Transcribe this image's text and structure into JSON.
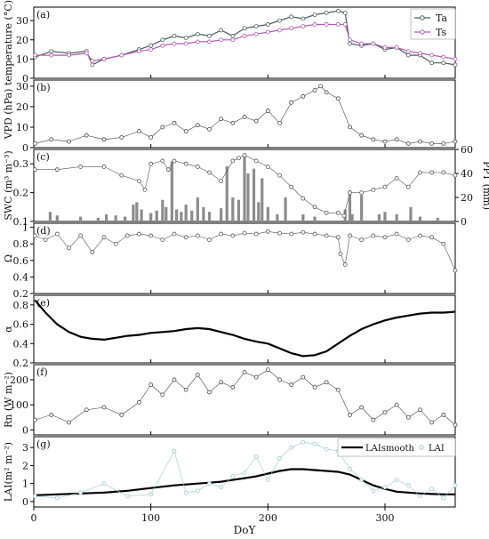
{
  "figure": {
    "xlabel": "DoY",
    "xticks": [
      0,
      100,
      200,
      300
    ],
    "xlim": [
      0,
      360
    ]
  },
  "chart_data": [
    {
      "type": "line",
      "panel_label": "(a)",
      "ylabel": "temperature (°C)",
      "ylim": [
        0,
        37
      ],
      "yticks": [
        0,
        10,
        20,
        30
      ],
      "legend": "top-right",
      "x": [
        1,
        15,
        30,
        45,
        50,
        60,
        75,
        90,
        100,
        110,
        120,
        130,
        140,
        150,
        160,
        170,
        180,
        190,
        200,
        210,
        220,
        230,
        240,
        250,
        260,
        266,
        270,
        280,
        290,
        300,
        310,
        320,
        330,
        340,
        350,
        360
      ],
      "series": [
        {
          "name": "Ta",
          "color": "#4d5c5c",
          "values": [
            11,
            14,
            13,
            14,
            7,
            10,
            12,
            15,
            17,
            20,
            22,
            21,
            23,
            22,
            25,
            22,
            26,
            27,
            28,
            30,
            32,
            31,
            33,
            34,
            35,
            34,
            18,
            17,
            18,
            15,
            16,
            12,
            12,
            8,
            8,
            7
          ]
        },
        {
          "name": "Ts",
          "color": "#b05cb0",
          "values": [
            12,
            12,
            12,
            13,
            9,
            10,
            12,
            14,
            15,
            17,
            18,
            18,
            19,
            19,
            20,
            20,
            22,
            23,
            24,
            25,
            26,
            27,
            28,
            28,
            28,
            28,
            20,
            18,
            18,
            16,
            16,
            14,
            13,
            12,
            11,
            10
          ]
        }
      ]
    },
    {
      "type": "scatter",
      "panel_label": "(b)",
      "ylabel": "VPD (hPa)",
      "ylim": [
        0,
        33
      ],
      "yticks": [
        0,
        10,
        20,
        30
      ],
      "x": [
        1,
        15,
        30,
        45,
        60,
        75,
        90,
        100,
        110,
        120,
        130,
        140,
        150,
        160,
        170,
        180,
        190,
        200,
        210,
        220,
        230,
        240,
        245,
        250,
        260,
        270,
        280,
        290,
        300,
        310,
        320,
        330,
        340,
        350,
        360
      ],
      "series": [
        {
          "name": "VPD",
          "color": "#444444",
          "values": [
            2,
            4,
            3,
            6,
            4,
            5,
            8,
            5,
            10,
            12,
            8,
            11,
            9,
            14,
            12,
            15,
            13,
            18,
            12,
            22,
            25,
            28,
            30,
            27,
            24,
            10,
            6,
            4,
            3,
            4,
            2,
            3,
            2,
            2,
            3
          ]
        }
      ]
    },
    {
      "type": "scatter",
      "panel_label": "(c)",
      "ylabel": "SWC (m³ m⁻³)",
      "y2label": "PPT (mm)",
      "ylim": [
        0.1,
        0.35
      ],
      "yticks": [
        0.1,
        0.2,
        0.3
      ],
      "y2lim": [
        0,
        60
      ],
      "y2ticks": [
        0,
        20,
        40,
        60
      ],
      "x": [
        1,
        20,
        40,
        60,
        75,
        90,
        95,
        100,
        110,
        115,
        120,
        130,
        140,
        150,
        160,
        170,
        175,
        180,
        190,
        200,
        210,
        220,
        230,
        240,
        250,
        260,
        265,
        270,
        280,
        290,
        300,
        310,
        320,
        330,
        340,
        350,
        360
      ],
      "series": [
        {
          "name": "SWC",
          "color": "#555555",
          "values": [
            0.28,
            0.28,
            0.29,
            0.29,
            0.26,
            0.24,
            0.21,
            0.3,
            0.31,
            0.28,
            0.31,
            0.3,
            0.29,
            0.27,
            0.24,
            0.31,
            0.32,
            0.33,
            0.31,
            0.29,
            0.26,
            0.22,
            0.18,
            0.15,
            0.13,
            0.13,
            0.12,
            0.2,
            0.2,
            0.21,
            0.22,
            0.25,
            0.22,
            0.27,
            0.27,
            0.27,
            0.26
          ]
        }
      ],
      "bars": {
        "name": "PPT",
        "color": "#8c8c8c",
        "x": [
          14,
          20,
          40,
          55,
          62,
          70,
          78,
          85,
          88,
          92,
          100,
          105,
          110,
          113,
          118,
          122,
          126,
          130,
          135,
          140,
          145,
          150,
          160,
          165,
          170,
          175,
          180,
          183,
          188,
          192,
          195,
          200,
          208,
          215,
          230,
          240,
          266,
          270,
          272,
          280,
          295,
          300,
          310,
          322,
          330,
          345
        ],
        "values": [
          8,
          5,
          4,
          3,
          6,
          5,
          4,
          14,
          16,
          10,
          7,
          9,
          18,
          12,
          50,
          10,
          8,
          14,
          9,
          20,
          12,
          8,
          11,
          46,
          20,
          18,
          55,
          40,
          44,
          16,
          36,
          12,
          6,
          20,
          6,
          4,
          10,
          26,
          6,
          22,
          6,
          8,
          6,
          12,
          4,
          3
        ]
      }
    },
    {
      "type": "scatter",
      "panel_label": "(d)",
      "ylabel": "Ω",
      "ylim": [
        0.2,
        1.05
      ],
      "yticks": [
        0.2,
        0.4,
        0.6,
        0.8,
        1.0
      ],
      "x": [
        1,
        10,
        20,
        30,
        40,
        50,
        60,
        70,
        80,
        90,
        100,
        110,
        120,
        130,
        140,
        150,
        160,
        170,
        180,
        190,
        200,
        210,
        220,
        230,
        240,
        250,
        260,
        262,
        266,
        270,
        280,
        290,
        300,
        310,
        320,
        330,
        340,
        350,
        360
      ],
      "series": [
        {
          "name": "Ω",
          "color": "#555555",
          "values": [
            0.9,
            0.85,
            0.92,
            0.75,
            0.9,
            0.7,
            0.88,
            0.8,
            0.9,
            0.92,
            0.9,
            0.85,
            0.92,
            0.88,
            0.9,
            0.85,
            0.92,
            0.9,
            0.93,
            0.92,
            0.95,
            0.93,
            0.92,
            0.94,
            0.92,
            0.9,
            0.88,
            0.68,
            0.55,
            0.9,
            0.85,
            0.9,
            0.88,
            0.92,
            0.85,
            0.9,
            0.88,
            0.8,
            0.48
          ]
        }
      ]
    },
    {
      "type": "line",
      "panel_label": "(e)",
      "ylabel": "α",
      "ylim": [
        0.2,
        0.9
      ],
      "yticks": [
        0.2,
        0.4,
        0.6,
        0.8
      ],
      "x": [
        1,
        10,
        20,
        30,
        40,
        50,
        60,
        70,
        80,
        90,
        100,
        110,
        120,
        130,
        140,
        150,
        160,
        170,
        180,
        190,
        200,
        210,
        220,
        230,
        240,
        250,
        260,
        270,
        280,
        290,
        300,
        310,
        320,
        330,
        340,
        350,
        360
      ],
      "series": [
        {
          "name": "α",
          "color": "#000000",
          "values": [
            0.85,
            0.72,
            0.6,
            0.52,
            0.47,
            0.45,
            0.44,
            0.46,
            0.48,
            0.49,
            0.51,
            0.52,
            0.53,
            0.55,
            0.56,
            0.55,
            0.52,
            0.49,
            0.45,
            0.42,
            0.4,
            0.35,
            0.3,
            0.27,
            0.28,
            0.32,
            0.4,
            0.48,
            0.55,
            0.6,
            0.64,
            0.67,
            0.69,
            0.71,
            0.72,
            0.72,
            0.73
          ]
        }
      ]
    },
    {
      "type": "scatter",
      "panel_label": "(f)",
      "ylabel": "Rn (W m⁻²)",
      "ylim": [
        -20,
        260
      ],
      "yticks": [
        0,
        100,
        200
      ],
      "x": [
        1,
        15,
        30,
        45,
        60,
        75,
        90,
        100,
        110,
        120,
        130,
        140,
        150,
        160,
        170,
        180,
        190,
        200,
        210,
        220,
        230,
        240,
        250,
        260,
        270,
        280,
        290,
        300,
        310,
        320,
        330,
        340,
        350,
        360
      ],
      "series": [
        {
          "name": "Rn",
          "color": "#444444",
          "values": [
            40,
            60,
            30,
            80,
            90,
            60,
            110,
            180,
            140,
            200,
            160,
            220,
            150,
            190,
            170,
            230,
            210,
            240,
            200,
            180,
            210,
            170,
            190,
            160,
            60,
            90,
            40,
            70,
            100,
            50,
            80,
            30,
            60,
            20
          ]
        }
      ]
    },
    {
      "type": "scatter",
      "panel_label": "(g)",
      "ylabel": "LAI(m² m⁻²)",
      "ylim": [
        -0.3,
        3.6
      ],
      "yticks": [
        0,
        1,
        2,
        3
      ],
      "legend": "top-right",
      "x": [
        1,
        20,
        40,
        60,
        80,
        100,
        120,
        130,
        140,
        150,
        160,
        170,
        180,
        190,
        200,
        210,
        220,
        230,
        240,
        250,
        260,
        270,
        280,
        290,
        300,
        310,
        320,
        330,
        340,
        350,
        360
      ],
      "series": [
        {
          "name": "LAIsmooth",
          "color": "#000000",
          "values": [
            0.35,
            0.4,
            0.45,
            0.5,
            0.6,
            0.75,
            0.9,
            0.95,
            1.0,
            1.05,
            1.1,
            1.2,
            1.3,
            1.4,
            1.55,
            1.7,
            1.8,
            1.8,
            1.75,
            1.7,
            1.65,
            1.5,
            1.2,
            0.9,
            0.7,
            0.55,
            0.5,
            0.45,
            0.42,
            0.4,
            0.4
          ]
        },
        {
          "name": "LAI",
          "color": "#9cc8d0",
          "values": [
            0.3,
            0.2,
            0.5,
            1.0,
            0.3,
            0.4,
            2.8,
            0.5,
            0.6,
            1.0,
            0.8,
            1.4,
            1.6,
            2.5,
            1.2,
            2.4,
            3.0,
            3.3,
            3.2,
            2.9,
            2.8,
            1.8,
            1.2,
            0.6,
            0.8,
            1.2,
            0.9,
            0.3,
            0.7,
            0.2,
            0.9
          ]
        }
      ]
    }
  ]
}
